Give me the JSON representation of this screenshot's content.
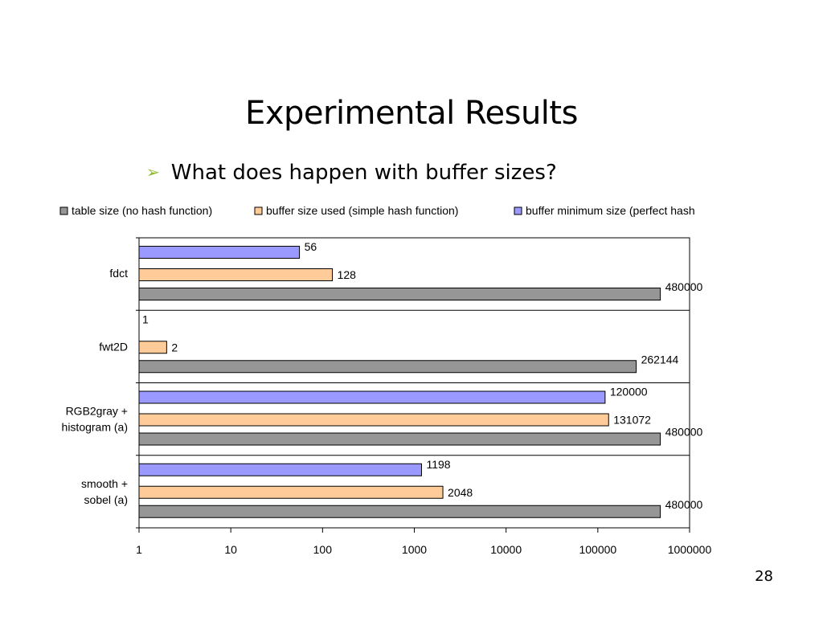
{
  "slide": {
    "title": "Experimental Results",
    "bullet": "What does happen with buffer sizes?",
    "bullet_icon": "arrow-bullet-icon",
    "page_number": "28"
  },
  "chart_data": {
    "type": "bar",
    "orientation": "horizontal",
    "x_scale": "log",
    "xlim": [
      1,
      1000000
    ],
    "x_ticks": [
      "1",
      "10",
      "100",
      "1000",
      "10000",
      "100000",
      "1000000"
    ],
    "x_tick_values": [
      1,
      10,
      100,
      1000,
      10000,
      100000,
      1000000
    ],
    "legend_position": "top",
    "categories": [
      [
        "fdct"
      ],
      [
        "fwt2D"
      ],
      [
        "RGB2gray +",
        "histogram (a)"
      ],
      [
        "smooth +",
        "sobel (a)"
      ]
    ],
    "series": [
      {
        "name": "table size (no hash function)",
        "color": "#969696",
        "values": [
          480000,
          262144,
          480000,
          480000
        ],
        "labels": [
          "480000",
          "262144",
          "480000",
          "480000"
        ]
      },
      {
        "name": "buffer size used (simple hash function)",
        "color": "#ffcc99",
        "values": [
          128,
          2,
          131072,
          2048
        ],
        "labels": [
          "128",
          "2",
          "131072",
          "2048"
        ]
      },
      {
        "name": "buffer minimum size (perfect hash",
        "color": "#9999ff",
        "values": [
          56,
          1,
          120000,
          1198
        ],
        "labels": [
          "56",
          "1",
          "120000",
          "1198"
        ]
      }
    ]
  }
}
